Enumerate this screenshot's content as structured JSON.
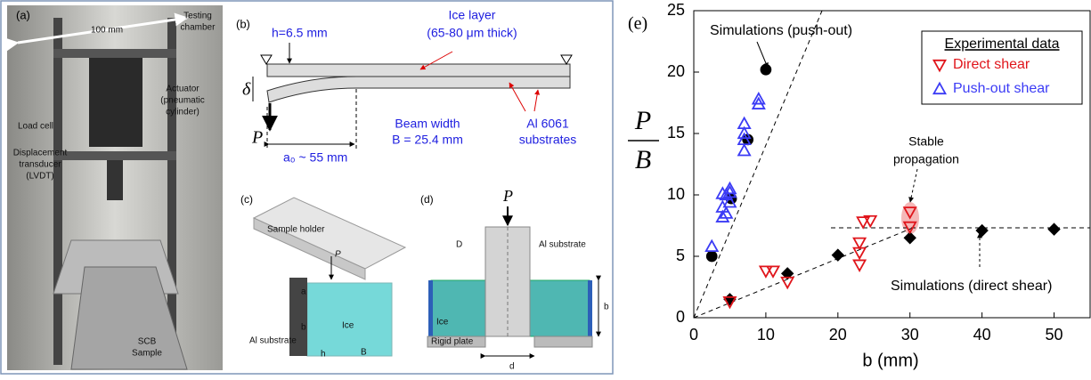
{
  "chart_data": {
    "type": "scatter",
    "panel_label": "(e)",
    "x_label": "b (mm)",
    "y_label": {
      "numerator": "P",
      "denominator": "B"
    },
    "xlim": [
      0,
      55
    ],
    "ylim": [
      0,
      25
    ],
    "xticks": [
      0,
      10,
      20,
      30,
      40,
      50
    ],
    "yticks": [
      0,
      5,
      10,
      15,
      20,
      25
    ],
    "legend_title": "Experimental data",
    "legend_position": "upper right",
    "series": [
      {
        "name": "Simulations (push-out)",
        "color": "#000000",
        "marker": "circle",
        "in_legend": false,
        "x": [
          2.5,
          5.2,
          7.5,
          10
        ],
        "values": [
          5,
          9.7,
          14.5,
          20.2
        ]
      },
      {
        "name": "Simulations (direct shear)",
        "color": "#000000",
        "marker": "diamond",
        "in_legend": false,
        "x": [
          5,
          13,
          20,
          30,
          40,
          50
        ],
        "values": [
          1.5,
          3.6,
          5.1,
          6.5,
          7.1,
          7.2
        ]
      },
      {
        "name": "Direct shear",
        "color": "#e0151b",
        "marker": "triangle-down",
        "in_legend": true,
        "x": [
          5,
          10,
          11,
          13,
          23,
          23,
          23,
          23.5,
          24.5,
          30,
          30
        ],
        "values": [
          1.3,
          3.8,
          3.8,
          2.9,
          4.3,
          5.3,
          6.1,
          7.8,
          7.9,
          8.6,
          7.4
        ]
      },
      {
        "name": "Push-out shear",
        "color": "#3b3bf5",
        "marker": "triangle-up",
        "in_legend": true,
        "x": [
          2.5,
          4,
          4.5,
          4,
          4,
          4.5,
          5,
          5,
          5,
          7,
          7,
          7,
          7,
          9,
          9
        ],
        "values": [
          5.8,
          8.2,
          8.5,
          9.0,
          10.1,
          10.0,
          9.4,
          10.2,
          10.5,
          13.6,
          14.5,
          15.0,
          15.8,
          17.4,
          17.8
        ]
      }
    ],
    "annotations": {
      "stable": [
        "Stable",
        "propagation"
      ]
    }
  },
  "panels": {
    "a": {
      "label": "(a)",
      "width": "100 mm",
      "chamber": [
        "Testing",
        "chamber"
      ],
      "actuator": [
        "Actuator",
        "(pneumatic",
        "cylinder)"
      ],
      "load_cell": "Load cell",
      "lvdt": [
        "Displacement",
        "transducer",
        "(LVDT)"
      ],
      "sample": [
        "SCB",
        "Sample"
      ]
    },
    "b": {
      "label": "(b)",
      "h": "h=6.5 mm",
      "ice": [
        "Ice layer",
        "(65-80 μm thick)"
      ],
      "delta": "δ",
      "p": "P",
      "a0": "a₀ ~ 55 mm",
      "beam": [
        "Beam width",
        "B = 25.4 mm"
      ],
      "al": [
        "Al 6061",
        "substrates"
      ]
    },
    "c": {
      "label": "(c)",
      "holder": "Sample holder",
      "p": "P",
      "a": "a",
      "b": "b",
      "ice": "Ice",
      "al": "Al substrate",
      "h": "h",
      "B": "B"
    },
    "d": {
      "label": "(d)",
      "p": "P",
      "D": "D",
      "al": "Al substrate",
      "ice": "Ice",
      "b": "b",
      "plate": "Rigid plate",
      "d": "d"
    }
  }
}
